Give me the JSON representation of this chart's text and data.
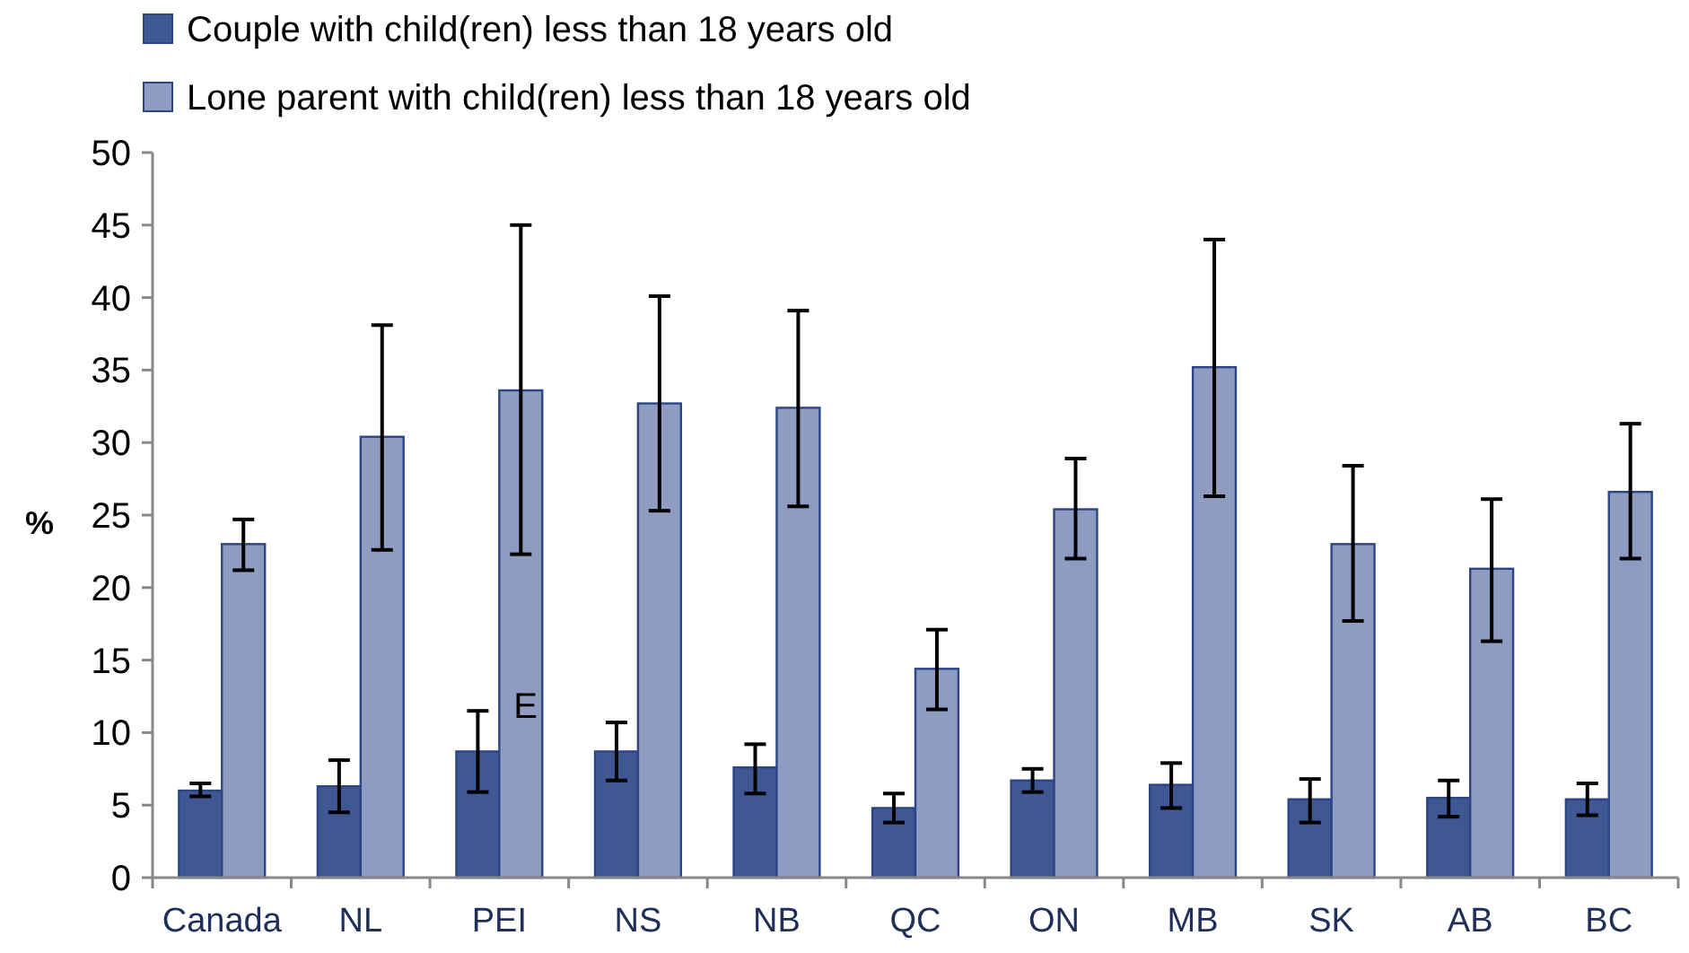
{
  "chart_data": {
    "type": "bar",
    "ylabel": "%",
    "legend": "top left",
    "grid": false,
    "categories": [
      "Canada",
      "NL",
      "PEI",
      "NS",
      "NB",
      "QC",
      "ON",
      "MB",
      "SK",
      "AB",
      "BC"
    ],
    "series": [
      {
        "name": "Couple with child(ren) less than 18 years old",
        "color": "#3f5893",
        "values": [
          6.0,
          6.3,
          8.7,
          8.7,
          7.6,
          4.8,
          6.7,
          6.4,
          5.4,
          5.5,
          5.4
        ],
        "errors": [
          [
            5.6,
            6.5
          ],
          [
            4.5,
            8.1
          ],
          [
            5.9,
            11.5
          ],
          [
            6.7,
            10.7
          ],
          [
            5.8,
            9.2
          ],
          [
            3.8,
            5.8
          ],
          [
            5.9,
            7.5
          ],
          [
            4.8,
            7.9
          ],
          [
            3.8,
            6.8
          ],
          [
            4.2,
            6.7
          ],
          [
            4.3,
            6.5
          ]
        ]
      },
      {
        "name": "Lone parent with child(ren) less than 18 years old",
        "color": "#8f9cc2",
        "values": [
          23.0,
          30.4,
          33.6,
          32.7,
          32.4,
          14.4,
          25.4,
          35.2,
          23.0,
          21.3,
          26.6
        ],
        "errors": [
          [
            21.2,
            24.7
          ],
          [
            22.6,
            38.1
          ],
          [
            22.3,
            45.0
          ],
          [
            25.3,
            40.1
          ],
          [
            25.6,
            39.1
          ],
          [
            11.6,
            17.1
          ],
          [
            22.0,
            28.9
          ],
          [
            26.3,
            44.0
          ],
          [
            17.7,
            28.4
          ],
          [
            16.3,
            26.1
          ],
          [
            22.0,
            31.3
          ]
        ]
      }
    ],
    "ylim": [
      0,
      50
    ],
    "yticks": [
      0,
      5,
      10,
      15,
      20,
      25,
      30,
      35,
      40,
      45,
      50
    ],
    "annotations": [
      {
        "text": "E",
        "x": "PEI",
        "y": 11
      }
    ]
  }
}
